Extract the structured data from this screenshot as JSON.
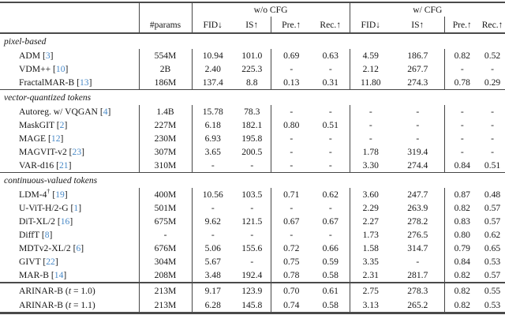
{
  "colors": {
    "citation_link": "#4788c7"
  },
  "table": {
    "header": {
      "group_wo_cfg": "w/o CFG",
      "group_w_cfg": "w/ CFG",
      "params_label": "#params",
      "metrics": [
        "FID↓",
        "IS↑",
        "Pre.↑",
        "Rec.↑"
      ]
    },
    "sections": [
      {
        "title": "pixel-based",
        "rows": [
          {
            "label_parts": [
              {
                "text": "ADM"
              }
            ],
            "cite": "3",
            "values": [
              "554M",
              "10.94",
              "101.0",
              "0.69",
              "0.63",
              "4.59",
              "186.7",
              "0.82",
              "0.52"
            ]
          },
          {
            "label_parts": [
              {
                "text": "VDM++"
              }
            ],
            "cite": "10",
            "values": [
              "2B",
              "2.40",
              "225.3",
              "-",
              "-",
              "2.12",
              "267.7",
              "-",
              "-"
            ]
          },
          {
            "label_parts": [
              {
                "text": "FractalMAR-B"
              }
            ],
            "cite": "13",
            "values": [
              "186M",
              "137.4",
              "8.8",
              "0.13",
              "0.31",
              "11.80",
              "274.3",
              "0.78",
              "0.29"
            ]
          }
        ]
      },
      {
        "title": "vector-quantized tokens",
        "rows": [
          {
            "label_parts": [
              {
                "text": "Autoreg. w/ VQGAN"
              }
            ],
            "cite": "4",
            "values": [
              "1.4B",
              "15.78",
              "78.3",
              "-",
              "-",
              "-",
              "-",
              "-",
              "-"
            ]
          },
          {
            "label_parts": [
              {
                "text": "MaskGIT"
              }
            ],
            "cite": "2",
            "values": [
              "227M",
              "6.18",
              "182.1",
              "0.80",
              "0.51",
              "-",
              "-",
              "-",
              "-"
            ]
          },
          {
            "label_parts": [
              {
                "text": "MAGE"
              }
            ],
            "cite": "12",
            "values": [
              "230M",
              "6.93",
              "195.8",
              "-",
              "-",
              "-",
              "-",
              "-",
              "-"
            ]
          },
          {
            "label_parts": [
              {
                "text": "MAGVIT-v2"
              }
            ],
            "cite": "23",
            "values": [
              "307M",
              "3.65",
              "200.5",
              "-",
              "-",
              "1.78",
              "319.4",
              "-",
              "-"
            ]
          },
          {
            "label_parts": [
              {
                "text": "VAR-d16"
              }
            ],
            "cite": "21",
            "values": [
              "310M",
              "-",
              "-",
              "-",
              "-",
              "3.30",
              "274.4",
              "0.84",
              "0.51"
            ]
          }
        ]
      },
      {
        "title": "continuous-valued tokens",
        "rows": [
          {
            "label_parts": [
              {
                "text": "LDM-4"
              },
              {
                "text": "†",
                "style": "sup"
              }
            ],
            "cite": "19",
            "values": [
              "400M",
              "10.56",
              "103.5",
              "0.71",
              "0.62",
              "3.60",
              "247.7",
              "0.87",
              "0.48"
            ]
          },
          {
            "label_parts": [
              {
                "text": "U-ViT-H/2-G"
              }
            ],
            "cite": "1",
            "values": [
              "501M",
              "-",
              "-",
              "-",
              "-",
              "2.29",
              "263.9",
              "0.82",
              "0.57"
            ]
          },
          {
            "label_parts": [
              {
                "text": "DiT-XL/2"
              }
            ],
            "cite": "16",
            "values": [
              "675M",
              "9.62",
              "121.5",
              "0.67",
              "0.67",
              "2.27",
              "278.2",
              "0.83",
              "0.57"
            ]
          },
          {
            "label_parts": [
              {
                "text": "DiffT"
              }
            ],
            "cite": "8",
            "values": [
              "-",
              "-",
              "-",
              "-",
              "-",
              "1.73",
              "276.5",
              "0.80",
              "0.62"
            ]
          },
          {
            "label_parts": [
              {
                "text": "MDTv2-XL/2"
              }
            ],
            "cite": "6",
            "values": [
              "676M",
              "5.06",
              "155.6",
              "0.72",
              "0.66",
              "1.58",
              "314.7",
              "0.79",
              "0.65"
            ]
          },
          {
            "label_parts": [
              {
                "text": "GIVT"
              }
            ],
            "cite": "22",
            "values": [
              "304M",
              "5.67",
              "-",
              "0.75",
              "0.59",
              "3.35",
              "-",
              "0.84",
              "0.53"
            ]
          },
          {
            "label_parts": [
              {
                "text": "MAR-B"
              }
            ],
            "cite": "14",
            "values": [
              "208M",
              "3.48",
              "192.4",
              "0.78",
              "0.58",
              "2.31",
              "281.7",
              "0.82",
              "0.57"
            ]
          }
        ]
      },
      {
        "title": null,
        "style": "result",
        "rows": [
          {
            "label_parts": [
              {
                "text": "ARINAR-B ("
              },
              {
                "text": "t",
                "style": "italic"
              },
              {
                "text": " = 1.0)"
              }
            ],
            "cite": null,
            "values": [
              "213M",
              "9.17",
              "123.9",
              "0.70",
              "0.61",
              "2.75",
              "278.3",
              "0.82",
              "0.55"
            ]
          },
          {
            "label_parts": [
              {
                "text": "ARINAR-B ("
              },
              {
                "text": "t",
                "style": "italic"
              },
              {
                "text": " = 1.1)"
              }
            ],
            "cite": null,
            "values": [
              "213M",
              "6.28",
              "145.8",
              "0.74",
              "0.58",
              "3.13",
              "265.2",
              "0.82",
              "0.53"
            ]
          }
        ]
      }
    ]
  }
}
